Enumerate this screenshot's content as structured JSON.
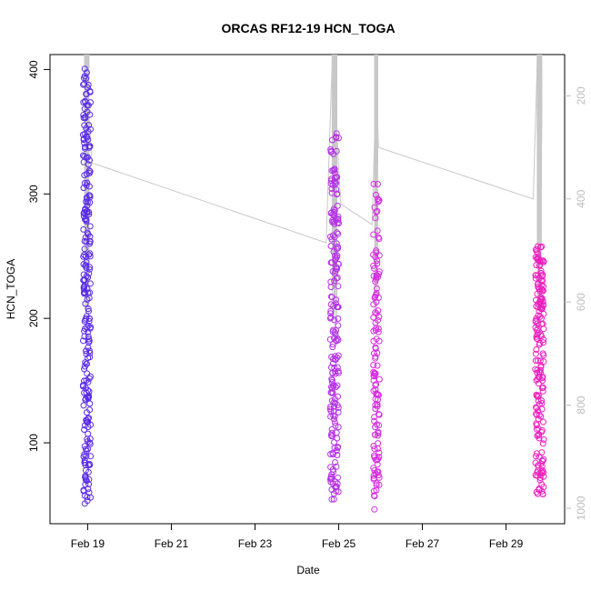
{
  "chart_data": {
    "type": "scatter",
    "title": "ORCAS RF12-19 HCN_TOGA",
    "xlabel": "Date",
    "ylabel": "HCN_TOGA",
    "x_ticks": [
      "Feb 19",
      "Feb 21",
      "Feb 23",
      "Feb 25",
      "Feb 27",
      "Feb 29"
    ],
    "y_ticks": [
      100,
      200,
      300,
      400
    ],
    "right_ticks": [
      200,
      400,
      600,
      800,
      1000
    ],
    "xlim_days": [
      18.0,
      30.3
    ],
    "ylim": [
      35,
      412
    ],
    "right_ylim": [
      120,
      1030
    ],
    "grid": false,
    "line_color": "#c8c8c8",
    "series": [
      {
        "color": "#5a2bea",
        "x_center": 18.88,
        "x_spread": 0.18,
        "y_min": 50,
        "y_max": 402,
        "count": 240
      },
      {
        "color": "#b531e6",
        "x_center": 24.8,
        "x_spread": 0.2,
        "y_min": 53,
        "y_max": 350,
        "count": 200
      },
      {
        "color": "#d62be0",
        "x_center": 25.8,
        "x_spread": 0.15,
        "y_min": 38,
        "y_max": 308,
        "count": 130
      },
      {
        "color": "#ee1fbf",
        "x_center": 29.7,
        "x_spread": 0.2,
        "y_min": 58,
        "y_max": 259,
        "count": 180
      }
    ],
    "altitude_track": [
      {
        "x": 18.85,
        "right_y": 120
      },
      {
        "x": 19.0,
        "right_y": 330
      },
      {
        "x": 24.6,
        "right_y": 485
      },
      {
        "x": 24.75,
        "right_y": 120
      },
      {
        "x": 24.95,
        "right_y": 410
      },
      {
        "x": 25.7,
        "right_y": 450
      },
      {
        "x": 25.8,
        "right_y": 160
      },
      {
        "x": 25.85,
        "right_y": 300
      },
      {
        "x": 29.55,
        "right_y": 400
      },
      {
        "x": 29.65,
        "right_y": 120
      }
    ]
  }
}
